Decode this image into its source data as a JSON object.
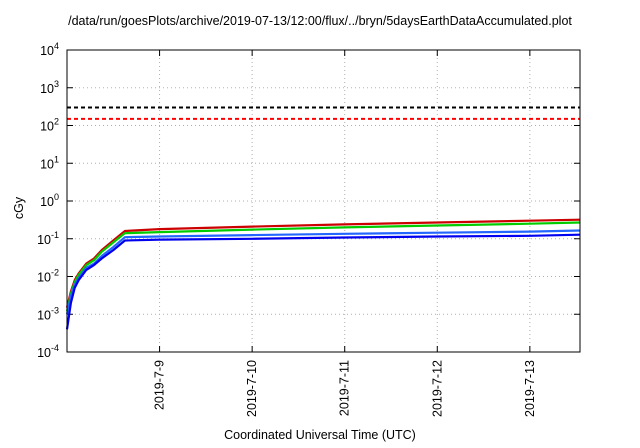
{
  "chart_data": {
    "type": "line",
    "title": "/data/run/goesPlots/archive/2019-07-13/12:00/flux/../bryn/5daysEarthDataAccumulated.plot",
    "xlabel": "Coordinated Universal Time (UTC)",
    "ylabel": "cGy",
    "y_scale": "log",
    "ylim": [
      0.0001,
      10000
    ],
    "xlim": [
      "2019-07-08T00:00",
      "2019-07-13T13:00"
    ],
    "y_ticks": [
      {
        "value": 0.0001,
        "base": "10",
        "exp": "-4"
      },
      {
        "value": 0.001,
        "base": "10",
        "exp": "-3"
      },
      {
        "value": 0.01,
        "base": "10",
        "exp": "-2"
      },
      {
        "value": 0.1,
        "base": "10",
        "exp": "-1"
      },
      {
        "value": 1,
        "base": "10",
        "exp": "0"
      },
      {
        "value": 10,
        "base": "10",
        "exp": "1"
      },
      {
        "value": 100,
        "base": "10",
        "exp": "2"
      },
      {
        "value": 1000,
        "base": "10",
        "exp": "3"
      },
      {
        "value": 10000,
        "base": "10",
        "exp": "4"
      }
    ],
    "x_ticks": [
      "2019-7-9",
      "2019-7-10",
      "2019-7-11",
      "2019-7-12",
      "2019-7-13"
    ],
    "grid": true,
    "series": [
      {
        "color": "#000000",
        "dashed": true,
        "x": [
          "2019-07-08T00:00",
          "2019-07-13T13:00"
        ],
        "y": [
          300,
          300
        ]
      },
      {
        "color": "#ff0000",
        "dashed": true,
        "x": [
          "2019-07-08T00:00",
          "2019-07-13T13:00"
        ],
        "y": [
          150,
          150
        ]
      },
      {
        "color": "#cc0000",
        "dashed": false,
        "x": [
          "2019-07-08T00:00",
          "2019-07-08T01:00",
          "2019-07-08T02:00",
          "2019-07-08T03:00",
          "2019-07-08T05:00",
          "2019-07-08T07:00",
          "2019-07-08T09:00",
          "2019-07-08T12:00",
          "2019-07-08T15:00",
          "2019-07-09T00:00",
          "2019-07-10T00:00",
          "2019-07-11T00:00",
          "2019-07-12T00:00",
          "2019-07-13T00:00",
          "2019-07-13T13:00"
        ],
        "y": [
          0.0015,
          0.004,
          0.008,
          0.012,
          0.022,
          0.03,
          0.05,
          0.09,
          0.16,
          0.18,
          0.21,
          0.24,
          0.27,
          0.3,
          0.32
        ]
      },
      {
        "color": "#00cc00",
        "dashed": false,
        "x": [
          "2019-07-08T00:00",
          "2019-07-08T01:00",
          "2019-07-08T02:00",
          "2019-07-08T03:00",
          "2019-07-08T05:00",
          "2019-07-08T07:00",
          "2019-07-08T09:00",
          "2019-07-08T12:00",
          "2019-07-08T15:00",
          "2019-07-09T00:00",
          "2019-07-10T00:00",
          "2019-07-11T00:00",
          "2019-07-12T00:00",
          "2019-07-13T00:00",
          "2019-07-13T13:00"
        ],
        "y": [
          0.0012,
          0.0035,
          0.007,
          0.011,
          0.02,
          0.027,
          0.045,
          0.08,
          0.14,
          0.15,
          0.175,
          0.2,
          0.225,
          0.25,
          0.27
        ]
      },
      {
        "color": "#2266ff",
        "dashed": false,
        "x": [
          "2019-07-08T00:00",
          "2019-07-08T01:00",
          "2019-07-08T02:00",
          "2019-07-08T03:00",
          "2019-07-08T05:00",
          "2019-07-08T07:00",
          "2019-07-08T09:00",
          "2019-07-08T12:00",
          "2019-07-08T15:00",
          "2019-07-09T00:00",
          "2019-07-10T00:00",
          "2019-07-11T00:00",
          "2019-07-12T00:00",
          "2019-07-13T00:00",
          "2019-07-13T13:00"
        ],
        "y": [
          0.001,
          0.003,
          0.006,
          0.009,
          0.017,
          0.022,
          0.035,
          0.06,
          0.11,
          0.115,
          0.125,
          0.135,
          0.145,
          0.155,
          0.165
        ]
      },
      {
        "color": "#0000ee",
        "dashed": false,
        "x": [
          "2019-07-08T00:00",
          "2019-07-08T01:00",
          "2019-07-08T02:00",
          "2019-07-08T03:00",
          "2019-07-08T05:00",
          "2019-07-08T07:00",
          "2019-07-08T09:00",
          "2019-07-08T12:00",
          "2019-07-08T15:00",
          "2019-07-09T00:00",
          "2019-07-10T00:00",
          "2019-07-11T00:00",
          "2019-07-12T00:00",
          "2019-07-13T00:00",
          "2019-07-13T13:00"
        ],
        "y": [
          0.0004,
          0.002,
          0.005,
          0.008,
          0.015,
          0.02,
          0.03,
          0.05,
          0.09,
          0.095,
          0.1,
          0.108,
          0.115,
          0.12,
          0.128
        ]
      }
    ]
  }
}
